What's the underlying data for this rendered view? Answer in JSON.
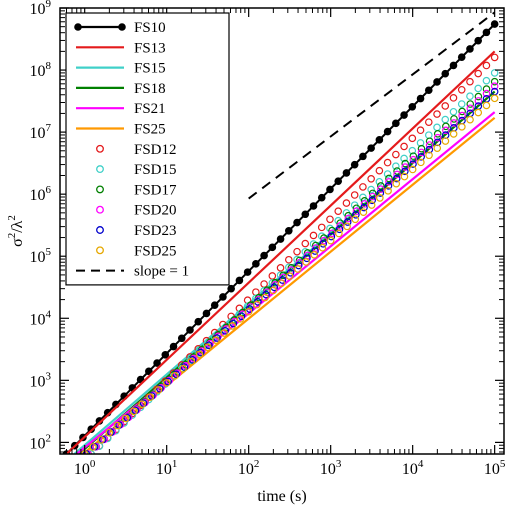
{
  "chart_data": {
    "type": "line",
    "xlabel": "time (s)",
    "ylabel_base": "σ",
    "ylabel_sup1": "2",
    "ylabel_mid": "/λ",
    "ylabel_sup2": "2",
    "x_scale": "log",
    "y_scale": "log",
    "xlim": [
      0.5,
      130000
    ],
    "ylim": [
      65,
      1000000000
    ],
    "x_ticks": [
      {
        "value": 1,
        "base": "10",
        "exp": "0"
      },
      {
        "value": 10,
        "base": "10",
        "exp": "1"
      },
      {
        "value": 100,
        "base": "10",
        "exp": "2"
      },
      {
        "value": 1000,
        "base": "10",
        "exp": "3"
      },
      {
        "value": 10000,
        "base": "10",
        "exp": "4"
      },
      {
        "value": 100000,
        "base": "10",
        "exp": "5"
      }
    ],
    "y_ticks": [
      {
        "value": 100,
        "base": "10",
        "exp": "2"
      },
      {
        "value": 1000,
        "base": "10",
        "exp": "3"
      },
      {
        "value": 10000,
        "base": "10",
        "exp": "4"
      },
      {
        "value": 100000,
        "base": "10",
        "exp": "5"
      },
      {
        "value": 1000000,
        "base": "10",
        "exp": "6"
      },
      {
        "value": 10000000,
        "base": "10",
        "exp": "7"
      },
      {
        "value": 100000000,
        "base": "10",
        "exp": "8"
      },
      {
        "value": 1000000000,
        "base": "10",
        "exp": "9"
      }
    ],
    "grid": false,
    "legend_position": "top-left",
    "series": [
      {
        "name": "FS10",
        "style": "line-dots",
        "color": "#000000",
        "x": [
          0.6,
          100000
        ],
        "y": [
          65,
          550000000
        ]
      },
      {
        "name": "FS13",
        "style": "line",
        "color": "#e41a1c",
        "x": [
          0.6,
          100000
        ],
        "y": [
          65,
          200000000
        ]
      },
      {
        "name": "FS15",
        "style": "line",
        "color": "#40d0c8",
        "x": [
          0.75,
          100000
        ],
        "y": [
          65,
          45000000
        ]
      },
      {
        "name": "FS18",
        "style": "line",
        "color": "#008000",
        "x": [
          0.85,
          100000
        ],
        "y": [
          65,
          45000000
        ]
      },
      {
        "name": "FS21",
        "style": "line",
        "color": "#ff00ff",
        "x": [
          0.8,
          100000
        ],
        "y": [
          65,
          21000000
        ]
      },
      {
        "name": "FS25",
        "style": "line",
        "color": "#ff9900",
        "x": [
          0.95,
          100000
        ],
        "y": [
          65,
          17000000
        ]
      },
      {
        "name": "FSD12",
        "style": "circles",
        "color": "#e41a1c",
        "x": [
          1.2,
          100000
        ],
        "y": [
          65,
          160000000
        ]
      },
      {
        "name": "FSD15",
        "style": "circles",
        "color": "#40d0c8",
        "x": [
          1.2,
          100000
        ],
        "y": [
          65,
          90000000
        ]
      },
      {
        "name": "FSD17",
        "style": "circles",
        "color": "#008000",
        "x": [
          1.1,
          100000
        ],
        "y": [
          65,
          65000000
        ]
      },
      {
        "name": "FSD20",
        "style": "circles",
        "color": "#ff00ff",
        "x": [
          1.1,
          100000
        ],
        "y": [
          65,
          55000000
        ]
      },
      {
        "name": "FSD23",
        "style": "circles",
        "color": "#0000cc",
        "x": [
          1.05,
          100000
        ],
        "y": [
          65,
          45000000
        ]
      },
      {
        "name": "FSD25",
        "style": "circles",
        "color": "#e6a800",
        "x": [
          1.0,
          100000
        ],
        "y": [
          65,
          35000000
        ]
      },
      {
        "name": "slope = 1",
        "style": "dashed",
        "color": "#000000",
        "x": [
          100,
          100000
        ],
        "y": [
          850000,
          850000000
        ]
      }
    ]
  }
}
